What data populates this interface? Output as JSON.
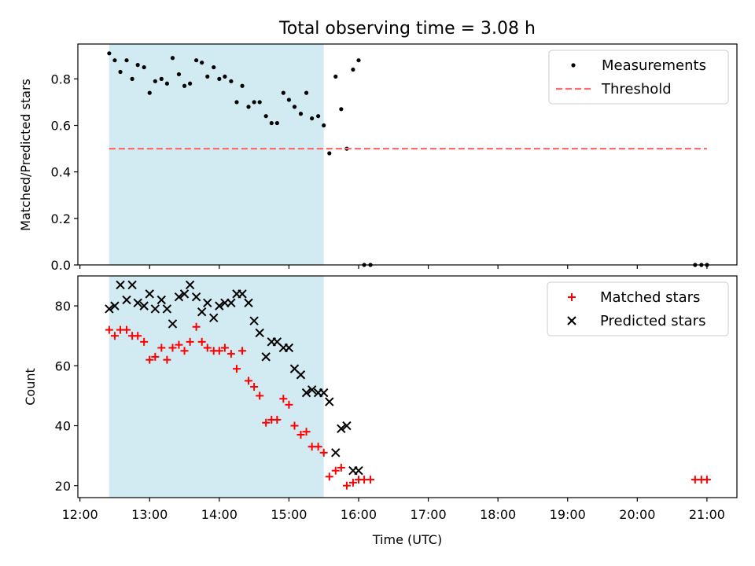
{
  "chart_data": [
    {
      "type": "scatter",
      "title": "Total observing time = 3.08 h",
      "xlabel": "",
      "ylabel": "Matched/Predicted stars",
      "xlim": [
        11.97,
        21.43
      ],
      "ylim": [
        0.0,
        0.95
      ],
      "yticks": [
        "0.0",
        "0.2",
        "0.4",
        "0.6",
        "0.8"
      ],
      "grid": false,
      "legend_position": "top-right",
      "shaded_region": {
        "x_start": 12.42,
        "x_end": 15.5,
        "color": "#add8e6"
      },
      "series": [
        {
          "name": "Measurements",
          "marker": "dot",
          "color": "#000000",
          "x": [
            12.42,
            12.5,
            12.58,
            12.67,
            12.75,
            12.83,
            12.92,
            13.0,
            13.08,
            13.17,
            13.25,
            13.33,
            13.42,
            13.5,
            13.58,
            13.67,
            13.75,
            13.83,
            13.92,
            14.0,
            14.08,
            14.17,
            14.25,
            14.33,
            14.42,
            14.5,
            14.58,
            14.67,
            14.75,
            14.83,
            14.92,
            15.0,
            15.08,
            15.17,
            15.25,
            15.33,
            15.42,
            15.5,
            15.58,
            15.67,
            15.75,
            15.83,
            15.92,
            16.0,
            16.08,
            16.17,
            20.83,
            20.92,
            21.0
          ],
          "y": [
            0.91,
            0.88,
            0.83,
            0.88,
            0.8,
            0.86,
            0.85,
            0.74,
            0.79,
            0.8,
            0.78,
            0.89,
            0.82,
            0.77,
            0.78,
            0.88,
            0.87,
            0.81,
            0.85,
            0.8,
            0.81,
            0.79,
            0.7,
            0.77,
            0.68,
            0.7,
            0.7,
            0.64,
            0.61,
            0.61,
            0.74,
            0.71,
            0.68,
            0.65,
            0.74,
            0.63,
            0.64,
            0.6,
            0.48,
            0.81,
            0.67,
            0.5,
            0.84,
            0.88,
            0.0,
            0.0,
            0.0,
            0.0,
            0.0
          ]
        },
        {
          "name": "Threshold",
          "type": "line",
          "style": "dashed",
          "color": "#ff6b6b",
          "x": [
            12.42,
            21.0
          ],
          "y": [
            0.5,
            0.5
          ]
        }
      ]
    },
    {
      "type": "scatter",
      "title": "",
      "xlabel": "Time (UTC)",
      "ylabel": "Count",
      "xlim": [
        11.97,
        21.43
      ],
      "ylim": [
        16,
        90
      ],
      "xticks": [
        "12:00",
        "13:00",
        "14:00",
        "15:00",
        "16:00",
        "17:00",
        "18:00",
        "19:00",
        "20:00",
        "21:00"
      ],
      "yticks": [
        "20",
        "40",
        "60",
        "80"
      ],
      "grid": false,
      "legend_position": "top-right",
      "shaded_region": {
        "x_start": 12.42,
        "x_end": 15.5,
        "color": "#add8e6"
      },
      "series": [
        {
          "name": "Matched stars",
          "marker": "plus",
          "color": "#ff0000",
          "x": [
            12.42,
            12.5,
            12.58,
            12.67,
            12.75,
            12.83,
            12.92,
            13.0,
            13.08,
            13.17,
            13.25,
            13.33,
            13.42,
            13.5,
            13.58,
            13.67,
            13.75,
            13.83,
            13.92,
            14.0,
            14.08,
            14.17,
            14.25,
            14.33,
            14.42,
            14.5,
            14.58,
            14.67,
            14.75,
            14.83,
            14.92,
            15.0,
            15.08,
            15.17,
            15.25,
            15.33,
            15.42,
            15.5,
            15.58,
            15.67,
            15.75,
            15.83,
            15.92,
            16.0,
            16.08,
            16.17,
            20.83,
            20.92,
            21.0
          ],
          "y": [
            72,
            70,
            72,
            72,
            70,
            70,
            68,
            62,
            63,
            66,
            62,
            66,
            67,
            65,
            68,
            73,
            68,
            66,
            65,
            65,
            66,
            64,
            59,
            65,
            55,
            53,
            50,
            41,
            42,
            42,
            49,
            47,
            40,
            37,
            38,
            33,
            33,
            31,
            23,
            25,
            26,
            20,
            21,
            22,
            22,
            22,
            22,
            22,
            22
          ]
        },
        {
          "name": "Predicted stars",
          "marker": "x",
          "color": "#000000",
          "x": [
            12.42,
            12.5,
            12.58,
            12.67,
            12.75,
            12.83,
            12.92,
            13.0,
            13.08,
            13.17,
            13.25,
            13.33,
            13.42,
            13.5,
            13.58,
            13.67,
            13.75,
            13.83,
            13.92,
            14.0,
            14.08,
            14.17,
            14.25,
            14.33,
            14.42,
            14.5,
            14.58,
            14.67,
            14.75,
            14.83,
            14.92,
            15.0,
            15.08,
            15.17,
            15.25,
            15.33,
            15.42,
            15.5,
            15.58,
            15.67,
            15.75,
            15.83,
            15.92,
            16.0
          ],
          "y": [
            79,
            80,
            87,
            82,
            87,
            81,
            80,
            84,
            79,
            82,
            79,
            74,
            83,
            84,
            87,
            83,
            78,
            81,
            76,
            80,
            81,
            81,
            84,
            84,
            81,
            75,
            71,
            63,
            68,
            68,
            66,
            66,
            59,
            57,
            51,
            52,
            51,
            51,
            48,
            31,
            39,
            40,
            25,
            25
          ]
        }
      ]
    }
  ]
}
